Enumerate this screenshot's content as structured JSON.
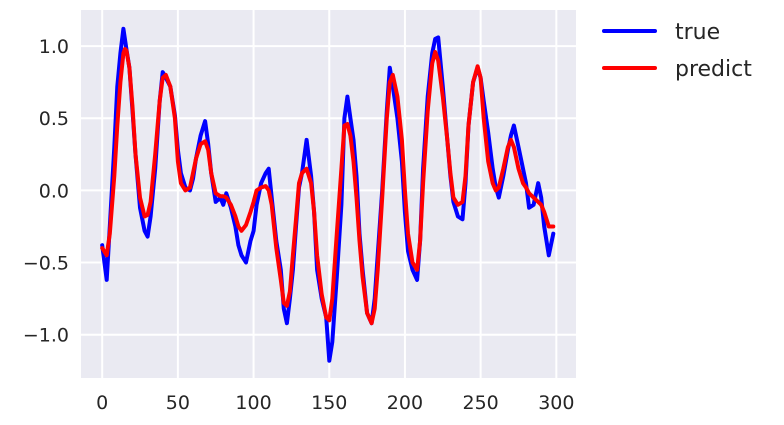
{
  "chart_data": {
    "type": "line",
    "title": "",
    "xlabel": "",
    "ylabel": "",
    "xlim": [
      -14,
      313
    ],
    "ylim": [
      -1.3,
      1.25
    ],
    "xticks": [
      0,
      50,
      100,
      150,
      200,
      250,
      300
    ],
    "yticks": [
      -1.0,
      -0.5,
      0.0,
      0.5,
      1.0
    ],
    "xtick_labels": [
      "0",
      "50",
      "100",
      "150",
      "200",
      "250",
      "300"
    ],
    "ytick_labels": [
      "−1.0",
      "−0.5",
      "0.0",
      "0.5",
      "1.0"
    ],
    "grid": true,
    "legend_position": "outside-top-right",
    "background": "#eaeaf2",
    "grid_color": "#ffffff",
    "series": [
      {
        "name": "true",
        "color": "#0000ff",
        "x": [
          0,
          3,
          5,
          8,
          10,
          12,
          14,
          15,
          16,
          18,
          20,
          22,
          25,
          28,
          30,
          32,
          35,
          38,
          40,
          42,
          45,
          48,
          50,
          52,
          55,
          58,
          60,
          62,
          65,
          68,
          70,
          72,
          75,
          78,
          80,
          82,
          85,
          88,
          90,
          92,
          95,
          98,
          100,
          102,
          105,
          108,
          110,
          112,
          115,
          118,
          120,
          122,
          124,
          126,
          128,
          130,
          132,
          135,
          138,
          140,
          142,
          145,
          148,
          150,
          152,
          155,
          158,
          160,
          162,
          164,
          166,
          168,
          170,
          172,
          175,
          178,
          180,
          182,
          185,
          188,
          190,
          192,
          195,
          198,
          200,
          202,
          205,
          208,
          210,
          212,
          215,
          218,
          220,
          222,
          225,
          228,
          230,
          232,
          235,
          238,
          240,
          242,
          245,
          248,
          250,
          252,
          255,
          258,
          260,
          262,
          265,
          268,
          270,
          272,
          275,
          278,
          280,
          282,
          285,
          288,
          290,
          292,
          295,
          298
        ],
        "values": [
          -0.38,
          -0.62,
          -0.25,
          0.3,
          0.72,
          0.95,
          1.12,
          1.05,
          0.98,
          0.85,
          0.55,
          0.25,
          -0.12,
          -0.28,
          -0.32,
          -0.18,
          0.15,
          0.62,
          0.82,
          0.78,
          0.72,
          0.52,
          0.28,
          0.12,
          0.02,
          0.0,
          0.08,
          0.22,
          0.38,
          0.48,
          0.32,
          0.12,
          -0.08,
          -0.05,
          -0.1,
          -0.02,
          -0.12,
          -0.25,
          -0.38,
          -0.45,
          -0.5,
          -0.35,
          -0.28,
          -0.1,
          0.05,
          0.12,
          0.15,
          -0.05,
          -0.35,
          -0.55,
          -0.82,
          -0.92,
          -0.75,
          -0.55,
          -0.25,
          0.02,
          0.12,
          0.35,
          0.1,
          -0.15,
          -0.55,
          -0.75,
          -0.88,
          -1.18,
          -1.05,
          -0.6,
          -0.1,
          0.5,
          0.65,
          0.5,
          0.35,
          0.1,
          -0.3,
          -0.55,
          -0.85,
          -0.92,
          -0.75,
          -0.45,
          0.0,
          0.55,
          0.85,
          0.72,
          0.5,
          0.2,
          -0.15,
          -0.42,
          -0.55,
          -0.62,
          -0.35,
          0.15,
          0.65,
          0.95,
          1.05,
          1.06,
          0.72,
          0.35,
          0.1,
          -0.08,
          -0.18,
          -0.2,
          0.05,
          0.45,
          0.75,
          0.85,
          0.78,
          0.62,
          0.4,
          0.15,
          0.02,
          -0.05,
          0.1,
          0.28,
          0.38,
          0.45,
          0.3,
          0.15,
          0.05,
          -0.12,
          -0.1,
          0.05,
          -0.05,
          -0.25,
          -0.45,
          -0.3
        ]
      },
      {
        "name": "predict",
        "color": "#ff0000",
        "x": [
          0,
          3,
          5,
          8,
          10,
          12,
          14,
          15,
          16,
          18,
          20,
          22,
          25,
          28,
          30,
          32,
          35,
          38,
          40,
          42,
          45,
          48,
          50,
          52,
          55,
          58,
          60,
          62,
          65,
          68,
          70,
          72,
          75,
          78,
          80,
          82,
          85,
          88,
          90,
          92,
          95,
          98,
          100,
          102,
          105,
          108,
          110,
          112,
          115,
          118,
          120,
          122,
          124,
          126,
          128,
          130,
          132,
          135,
          138,
          140,
          142,
          145,
          148,
          150,
          152,
          155,
          158,
          160,
          162,
          164,
          166,
          168,
          170,
          172,
          175,
          178,
          180,
          182,
          185,
          188,
          190,
          192,
          195,
          198,
          200,
          202,
          205,
          208,
          210,
          212,
          215,
          218,
          220,
          222,
          225,
          228,
          230,
          232,
          235,
          238,
          240,
          242,
          245,
          248,
          250,
          252,
          255,
          258,
          260,
          262,
          265,
          268,
          270,
          272,
          275,
          278,
          280,
          282,
          285,
          288,
          290,
          292,
          295,
          298
        ],
        "values": [
          -0.4,
          -0.45,
          -0.3,
          0.1,
          0.45,
          0.75,
          0.95,
          0.98,
          0.97,
          0.85,
          0.58,
          0.25,
          -0.05,
          -0.18,
          -0.17,
          -0.08,
          0.25,
          0.62,
          0.78,
          0.8,
          0.72,
          0.5,
          0.2,
          0.05,
          0.0,
          0.02,
          0.12,
          0.22,
          0.32,
          0.34,
          0.28,
          0.12,
          -0.02,
          -0.04,
          -0.04,
          -0.05,
          -0.1,
          -0.18,
          -0.25,
          -0.28,
          -0.24,
          -0.15,
          -0.08,
          0.0,
          0.02,
          0.03,
          0.0,
          -0.1,
          -0.4,
          -0.62,
          -0.78,
          -0.8,
          -0.7,
          -0.45,
          -0.2,
          0.05,
          0.12,
          0.15,
          0.05,
          -0.15,
          -0.45,
          -0.72,
          -0.88,
          -0.9,
          -0.75,
          -0.3,
          0.15,
          0.45,
          0.46,
          0.38,
          0.2,
          -0.05,
          -0.35,
          -0.6,
          -0.85,
          -0.92,
          -0.82,
          -0.55,
          -0.05,
          0.5,
          0.75,
          0.8,
          0.65,
          0.35,
          0.0,
          -0.3,
          -0.5,
          -0.55,
          -0.35,
          0.05,
          0.55,
          0.88,
          0.96,
          0.9,
          0.65,
          0.35,
          0.12,
          -0.05,
          -0.1,
          -0.08,
          0.1,
          0.45,
          0.75,
          0.86,
          0.78,
          0.5,
          0.2,
          0.05,
          0.0,
          0.02,
          0.15,
          0.3,
          0.35,
          0.3,
          0.15,
          0.05,
          0.02,
          -0.02,
          -0.05,
          -0.08,
          -0.1,
          -0.15,
          -0.25,
          -0.25
        ]
      }
    ]
  }
}
